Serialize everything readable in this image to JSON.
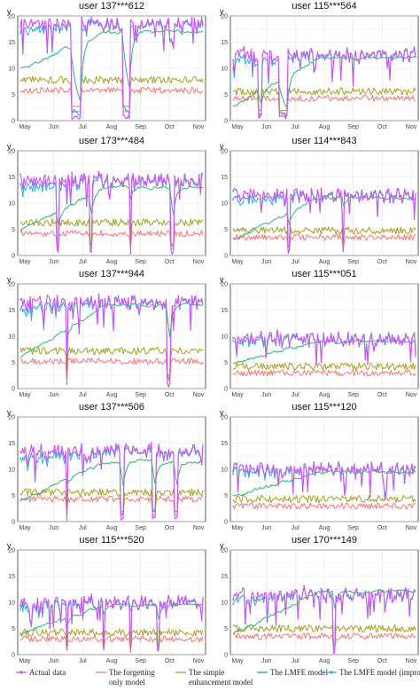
{
  "chart_data": {
    "type": "line",
    "layout": "5 rows x 2 columns of small multiples",
    "shared": {
      "ylabel": "y",
      "ylim": [
        0,
        20
      ],
      "yticks": [
        0,
        5,
        10,
        15,
        20
      ],
      "xticks": [
        "May",
        "Jun",
        "Jul",
        "Aug",
        "Sep",
        "Oct",
        "Nov"
      ],
      "grid": true,
      "legend_position": "bottom"
    },
    "series_styles": [
      {
        "name": "Actual data",
        "color": "#cc55ee",
        "marker": true
      },
      {
        "name": "The forgetting only model",
        "color": "#f27878",
        "marker": false
      },
      {
        "name": "The simple enhancement model",
        "color": "#a8a020",
        "marker": false
      },
      {
        "name": "The LMFE model",
        "color": "#2ab577",
        "marker": false
      },
      {
        "name": "The LMFE model (improved)",
        "color": "#33b0dd",
        "marker": true
      }
    ],
    "legend_labels": [
      [
        "Actual data"
      ],
      [
        "The forgetting",
        "only model"
      ],
      [
        "The simple",
        "enhancement model"
      ],
      [
        "The LMFE model"
      ],
      [
        "The LMFE model (improved)"
      ]
    ],
    "panels": [
      {
        "title": "user 137***612",
        "levels": {
          "actual": 18.5,
          "forgetting": 5.8,
          "simple": 7.8,
          "lmfe_start": 10,
          "lmfe_end": 17
        },
        "dips": [
          [
            0.28,
            0.33
          ],
          [
            0.56,
            0.6
          ]
        ]
      },
      {
        "title": "user 115***564",
        "levels": {
          "actual": 12.5,
          "forgetting": 4.3,
          "simple": 5.6,
          "lmfe_start": 3,
          "lmfe_end": 12
        },
        "dips": [
          [
            0.14,
            0.16
          ],
          [
            0.25,
            0.3
          ]
        ]
      },
      {
        "title": "user 173***484",
        "levels": {
          "actual": 14.5,
          "forgetting": 4.2,
          "simple": 6.3,
          "lmfe_start": 5,
          "lmfe_end": 13
        },
        "dips": [
          [
            0.2,
            0.21
          ],
          [
            0.38,
            0.39
          ],
          [
            0.6,
            0.61
          ],
          [
            0.82,
            0.84
          ]
        ]
      },
      {
        "title": "user 114***843",
        "levels": {
          "actual": 11.5,
          "forgetting": 3.5,
          "simple": 4.8,
          "lmfe_start": 3,
          "lmfe_end": 11
        },
        "dips": [
          [
            0.3,
            0.31
          ],
          [
            0.6,
            0.61
          ]
        ]
      },
      {
        "title": "user 137***944",
        "levels": {
          "actual": 16.5,
          "forgetting": 5.2,
          "simple": 7.2,
          "lmfe_start": 6,
          "lmfe_end": 16
        },
        "dips": [
          [
            0.25,
            0.26
          ],
          [
            0.8,
            0.82
          ]
        ]
      },
      {
        "title": "user 115***051",
        "levels": {
          "actual": 9.5,
          "forgetting": 3.0,
          "simple": 4.2,
          "lmfe_start": 5,
          "lmfe_end": 9
        },
        "dips": []
      },
      {
        "title": "user 137***506",
        "levels": {
          "actual": 13.5,
          "forgetting": 4.3,
          "simple": 5.6,
          "lmfe_start": 4,
          "lmfe_end": 11.5
        },
        "dips": [
          [
            0.25,
            0.26
          ],
          [
            0.55,
            0.57
          ],
          [
            0.72,
            0.74
          ],
          [
            0.84,
            0.86
          ]
        ]
      },
      {
        "title": "user 115***120",
        "levels": {
          "actual": 10,
          "forgetting": 3.0,
          "simple": 4.3,
          "lmfe_start": 5,
          "lmfe_end": 9.5
        },
        "dips": []
      },
      {
        "title": "user 115***520",
        "levels": {
          "actual": 10,
          "forgetting": 3.0,
          "simple": 4.2,
          "lmfe_start": 4,
          "lmfe_end": 9.5
        },
        "dips": [
          [
            0.25,
            0.26
          ],
          [
            0.45,
            0.46
          ],
          [
            0.6,
            0.61
          ],
          [
            0.75,
            0.76
          ]
        ]
      },
      {
        "title": "user 170***149",
        "levels": {
          "actual": 11.5,
          "forgetting": 3.5,
          "simple": 5.0,
          "lmfe_start": 4,
          "lmfe_end": 12
        },
        "dips": [
          [
            0.55,
            0.56
          ]
        ]
      }
    ]
  }
}
